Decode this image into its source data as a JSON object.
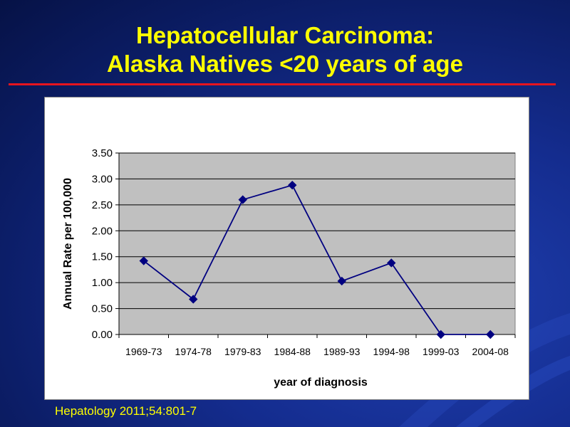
{
  "slide": {
    "title_line1": "Hepatocellular Carcinoma:",
    "title_line2": "Alaska Natives <20 years of age",
    "citation": "Hepatology 2011;54:801-7"
  },
  "colors": {
    "title": "#ffff00",
    "rule": "#e6141e",
    "plot_bg": "#c0c0c0",
    "series": "#000080"
  },
  "chart_data": {
    "type": "line",
    "title": "",
    "xlabel": "year of diagnosis",
    "ylabel": "Annual Rate per 100,000",
    "categories": [
      "1969-73",
      "1974-78",
      "1979-83",
      "1984-88",
      "1989-93",
      "1994-98",
      "1999-03",
      "2004-08"
    ],
    "series": [
      {
        "values": [
          1.42,
          0.68,
          2.6,
          2.88,
          1.03,
          1.38,
          0.0,
          0.0
        ]
      }
    ],
    "ylim": [
      0,
      3.5
    ],
    "yticks": [
      "0.00",
      "0.50",
      "1.00",
      "1.50",
      "2.00",
      "2.50",
      "3.00",
      "3.50"
    ],
    "grid": true,
    "legend": "none",
    "marker": "diamond"
  }
}
